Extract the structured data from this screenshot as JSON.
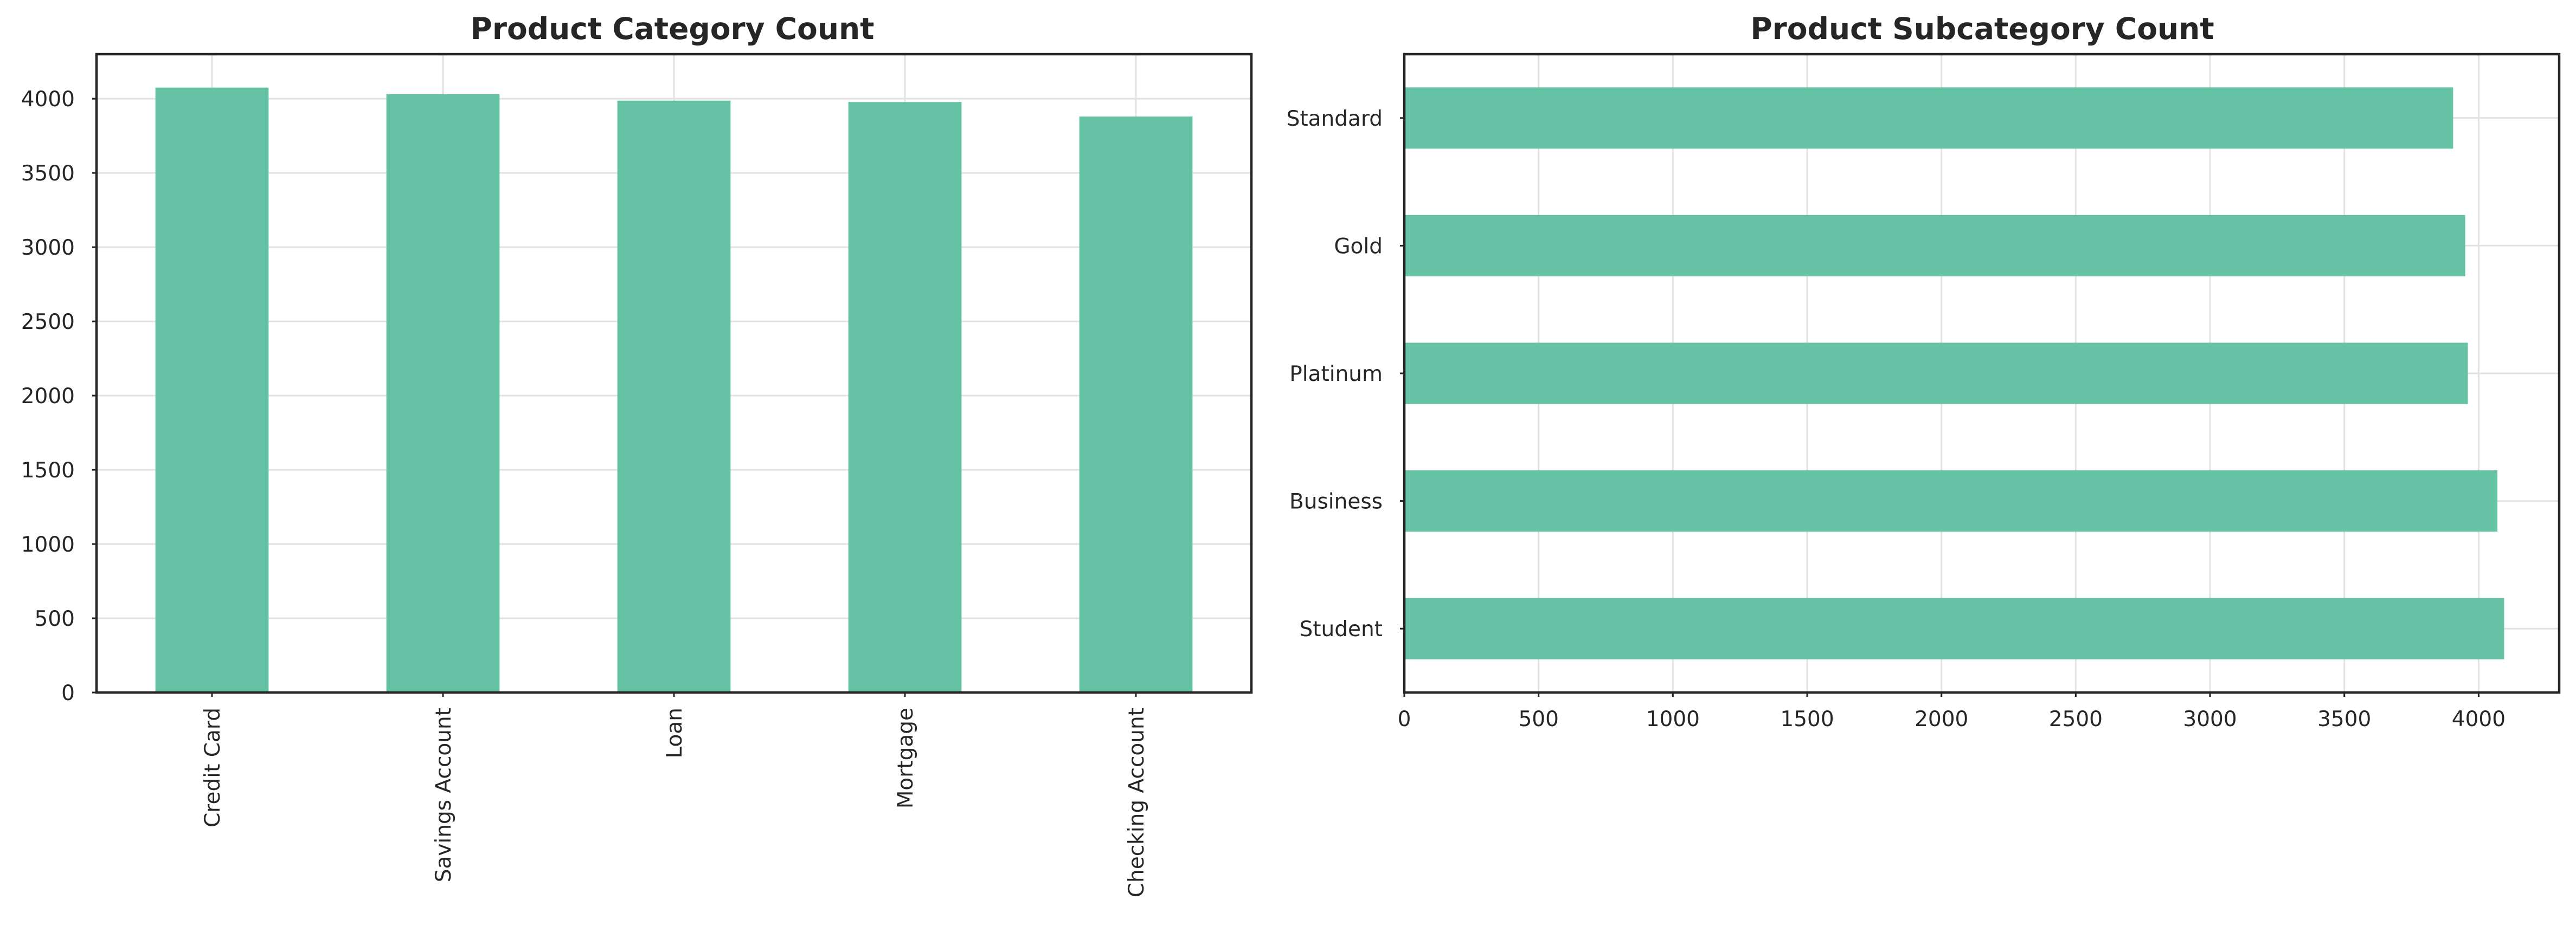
{
  "colors": {
    "bar": "#66c2a5",
    "grid": "#e2e2e2",
    "axis": "#262626",
    "background": "#ffffff"
  },
  "chart_data": [
    {
      "type": "bar",
      "orientation": "vertical",
      "title": "Product Category Count",
      "xlabel": "",
      "ylabel": "",
      "categories": [
        "Credit Card",
        "Savings Account",
        "Loan",
        "Mortgage",
        "Checking Account"
      ],
      "values": [
        4075,
        4030,
        3987,
        3978,
        3880
      ],
      "ylim": [
        0,
        4300
      ],
      "yticks": [
        0,
        500,
        1000,
        1500,
        2000,
        2500,
        3000,
        3500,
        4000
      ],
      "tick_label_rotation": "vertical",
      "grid": true,
      "legend": "none"
    },
    {
      "type": "bar",
      "orientation": "horizontal",
      "title": "Product Subcategory Count",
      "xlabel": "",
      "ylabel": "",
      "categories": [
        "Standard",
        "Gold",
        "Platinum",
        "Business",
        "Student"
      ],
      "values": [
        3905,
        3950,
        3960,
        4070,
        4095
      ],
      "xlim": [
        0,
        4300
      ],
      "xticks": [
        0,
        500,
        1000,
        1500,
        2000,
        2500,
        3000,
        3500,
        4000
      ],
      "grid": true,
      "legend": "none"
    }
  ]
}
